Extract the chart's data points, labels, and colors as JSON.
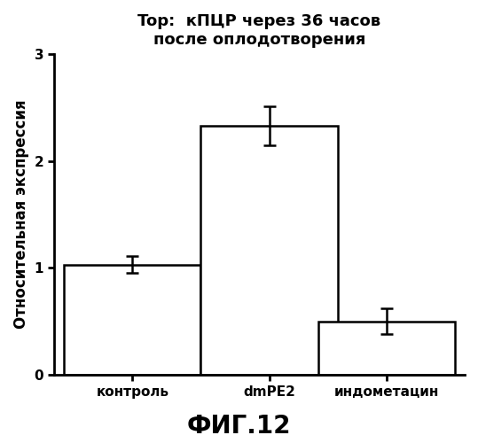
{
  "categories": [
    "контроль",
    "dmPE2",
    "индометацин"
  ],
  "values": [
    1.03,
    2.33,
    0.5
  ],
  "errors": [
    0.08,
    0.18,
    0.12
  ],
  "bar_color": "#ffffff",
  "bar_edgecolor": "#000000",
  "title_line1": "Top:  кПЦР через 36 часов",
  "title_line2": "после оплодотворения",
  "ylabel": "Относительная экспрессия",
  "figcaption": "ФИГ.12",
  "ylim": [
    0,
    3
  ],
  "yticks": [
    0,
    1,
    2,
    3
  ],
  "background_color": "#ffffff",
  "title_fontsize": 13,
  "ylabel_fontsize": 12,
  "tick_fontsize": 11,
  "xtick_fontsize": 11,
  "caption_fontsize": 20,
  "bar_width": 0.35,
  "bar_positions": [
    0.2,
    0.55,
    0.85
  ],
  "xlim": [
    0.0,
    1.05
  ]
}
